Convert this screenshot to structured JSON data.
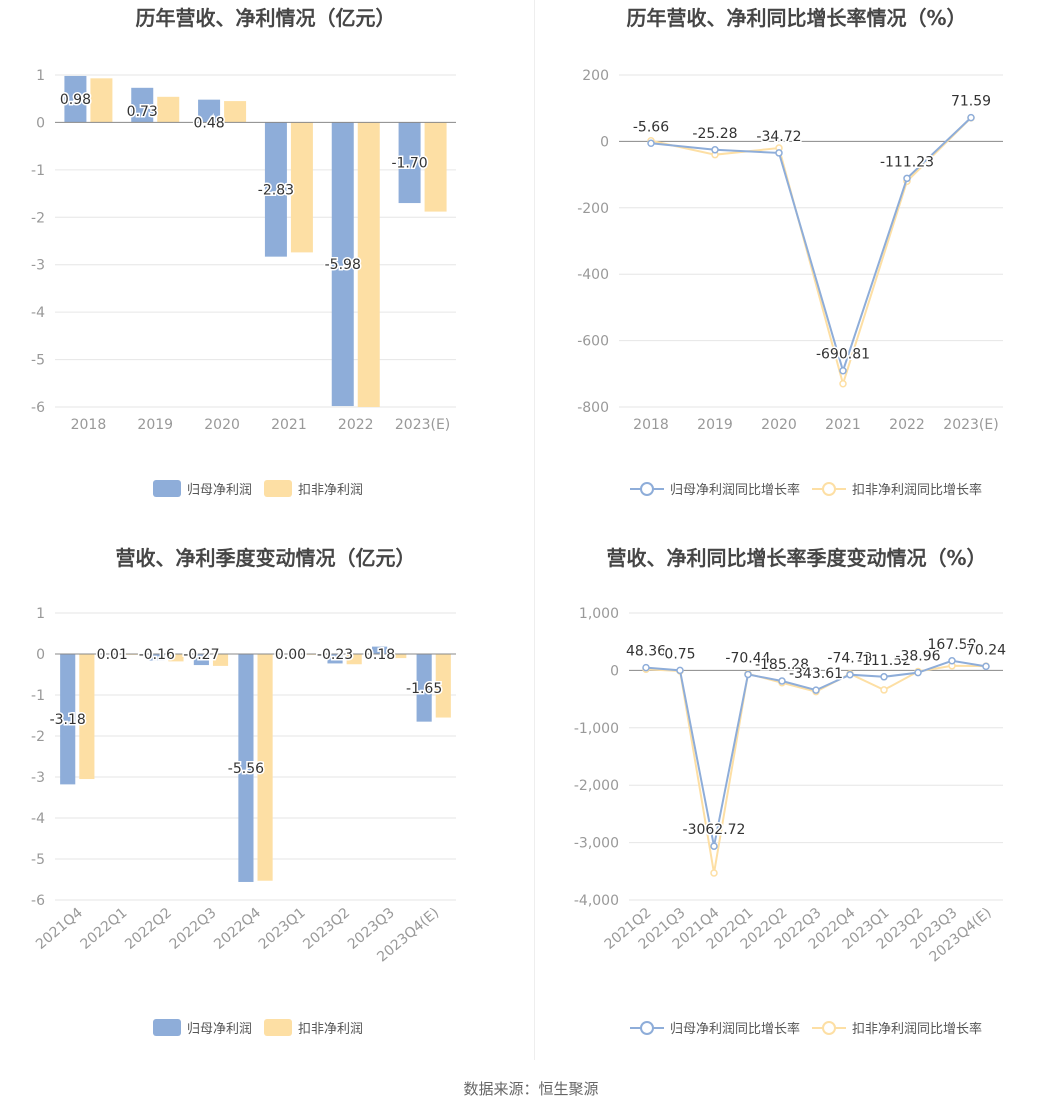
{
  "source": "数据来源：恒生聚源",
  "colors": {
    "blue": "#8eadd9",
    "orange": "#fddfa4",
    "grid": "#e6e6e6",
    "axis": "#888888"
  },
  "chart_data": [
    {
      "type": "bar",
      "title": "历年营收、净利情况（亿元）",
      "categories": [
        "2018",
        "2019",
        "2020",
        "2021",
        "2022",
        "2023(E)"
      ],
      "ylim": [
        -6,
        1
      ],
      "yticks": [
        1,
        0,
        -1,
        -2,
        -3,
        -4,
        -5,
        -6
      ],
      "series": [
        {
          "name": "归母净利润",
          "values": [
            0.98,
            0.73,
            0.48,
            -2.83,
            -5.98,
            -1.7
          ],
          "labels": [
            "0.98",
            "0.73",
            "0.48",
            "-2.83",
            "-5.98",
            "-1.70"
          ]
        },
        {
          "name": "扣非净利润",
          "values": [
            0.93,
            0.54,
            0.45,
            -2.74,
            -6.0,
            -1.88
          ]
        }
      ],
      "legend": "bottom-center"
    },
    {
      "type": "line",
      "title": "历年营收、净利同比增长率情况（%）",
      "categories": [
        "2018",
        "2019",
        "2020",
        "2021",
        "2022",
        "2023(E)"
      ],
      "ylim": [
        -800,
        200
      ],
      "yticks": [
        200,
        0,
        -200,
        -400,
        -600,
        -800
      ],
      "series": [
        {
          "name": "归母净利润同比增长率",
          "values": [
            -5.66,
            -25.28,
            -34.72,
            -690.81,
            -111.23,
            71.59
          ],
          "labels": [
            "-5.66",
            "-25.28",
            "-34.72",
            "-690.81",
            "-111.23",
            "71.59"
          ]
        },
        {
          "name": "扣非净利润同比增长率",
          "values": [
            2,
            -40,
            -20,
            -730,
            -120,
            71
          ]
        }
      ],
      "legend": "bottom-center"
    },
    {
      "type": "bar",
      "title": "营收、净利季度变动情况（亿元）",
      "categories": [
        "2021Q4",
        "2022Q1",
        "2022Q2",
        "2022Q3",
        "2022Q4",
        "2023Q1",
        "2023Q2",
        "2023Q3",
        "2023Q4(E)"
      ],
      "ylim": [
        -6,
        1
      ],
      "yticks": [
        1,
        0,
        -1,
        -2,
        -3,
        -4,
        -5,
        -6
      ],
      "series": [
        {
          "name": "归母净利润",
          "values": [
            -3.18,
            0.01,
            -0.16,
            -0.27,
            -5.56,
            0.0,
            -0.23,
            0.18,
            -1.65
          ],
          "labels": [
            "-3.18",
            "0.01",
            "-0.16",
            "-0.27",
            "-5.56",
            "0.00",
            "-0.23",
            "0.18",
            "-1.65"
          ]
        },
        {
          "name": "扣非净利润",
          "values": [
            -3.05,
            -0.02,
            -0.18,
            -0.29,
            -5.53,
            -0.02,
            -0.25,
            -0.1,
            -1.55
          ]
        }
      ],
      "legend": "bottom-center"
    },
    {
      "type": "line",
      "title": "营收、净利同比增长率季度变动情况（%）",
      "categories": [
        "2021Q2",
        "2021Q3",
        "2021Q4",
        "2022Q1",
        "2022Q2",
        "2022Q3",
        "2022Q4",
        "2023Q1",
        "2023Q2",
        "2023Q3",
        "2023Q4(E)"
      ],
      "ylim": [
        -4000,
        1000
      ],
      "yticks": [
        1000,
        0,
        -1000,
        -2000,
        -3000,
        -4000
      ],
      "ytick_labels": [
        "1,000",
        "0",
        "-1,000",
        "-2,000",
        "-3,000",
        "-4,000"
      ],
      "series": [
        {
          "name": "归母净利润同比增长率",
          "values": [
            48.36,
            0.75,
            -3062.72,
            -70.44,
            -185.28,
            -343.61,
            -74.79,
            -111.52,
            -38.96,
            167.58,
            70.24
          ],
          "labels": [
            "48.36",
            "0.75",
            "-3062.72",
            "-70.44",
            "-185.28",
            "-343.61",
            "-74.79",
            "-111.52",
            "-38.96",
            "167.58",
            "70.24"
          ]
        },
        {
          "name": "扣非净利润同比增长率",
          "values": [
            20,
            -10,
            -3530,
            -60,
            -215,
            -370,
            -60,
            -340,
            -20,
            80,
            75
          ]
        }
      ],
      "legend": "bottom-center"
    }
  ]
}
